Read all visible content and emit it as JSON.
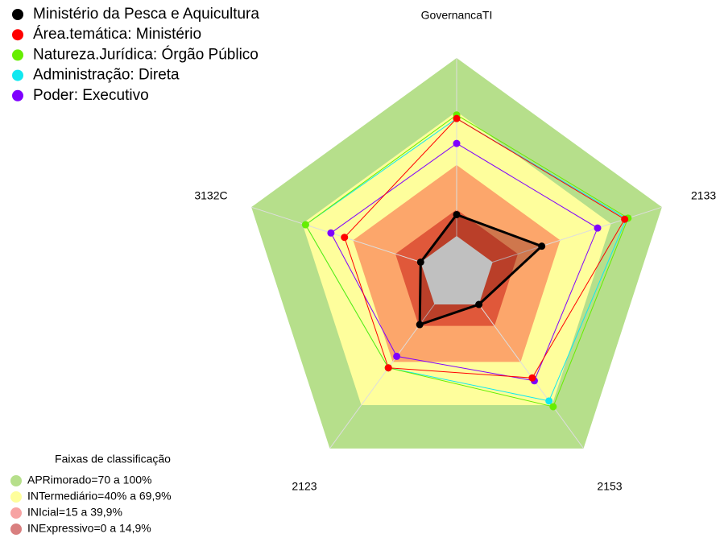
{
  "chart_data": {
    "type": "radar",
    "categories": [
      "GovernancaTI",
      "2133",
      "2153",
      "2123",
      "3132C"
    ],
    "rlim": [
      0,
      100
    ],
    "series": [
      {
        "name": "Ministério da Pesca e Aquicultura",
        "color": "#000000",
        "values": [
          12,
          29,
          0,
          14,
          0
        ]
      },
      {
        "name": "Área.temática: Ministério",
        "color": "#ff0000",
        "values": [
          66,
          78,
          51,
          44,
          45
        ]
      },
      {
        "name": "Natureza.Jurídica: Órgão Público",
        "color": "#66ee00",
        "values": [
          68,
          80,
          71,
          44,
          68
        ]
      },
      {
        "name": "Administração: Direta",
        "color": "#11e8f0",
        "values": [
          66,
          79,
          67,
          44,
          68
        ]
      },
      {
        "name": "Poder: Executivo",
        "color": "#7f00ff",
        "values": [
          52,
          62,
          53,
          36,
          53
        ]
      }
    ],
    "bands_title": "Faixas de classificação",
    "bands": [
      {
        "label": "APRimorado=70 a 100%",
        "lower": 70,
        "upper": 100,
        "color": "#b6df8b",
        "legend_color": "#b6df8b"
      },
      {
        "label": "INTermediário=40% a 69,9%",
        "lower": 40,
        "upper": 69.9,
        "color": "#fefe9c",
        "legend_color": "#fefe9c"
      },
      {
        "label": "INIcial=15 a 39,9%",
        "lower": 15,
        "upper": 39.9,
        "color": "#fca66b",
        "legend_color": "#f7a3a3"
      },
      {
        "label": "INExpressivo=0 a 14,9%",
        "lower": 0,
        "upper": 14.9,
        "color": "#e0583a",
        "legend_color": "#d97f7f"
      }
    ]
  }
}
